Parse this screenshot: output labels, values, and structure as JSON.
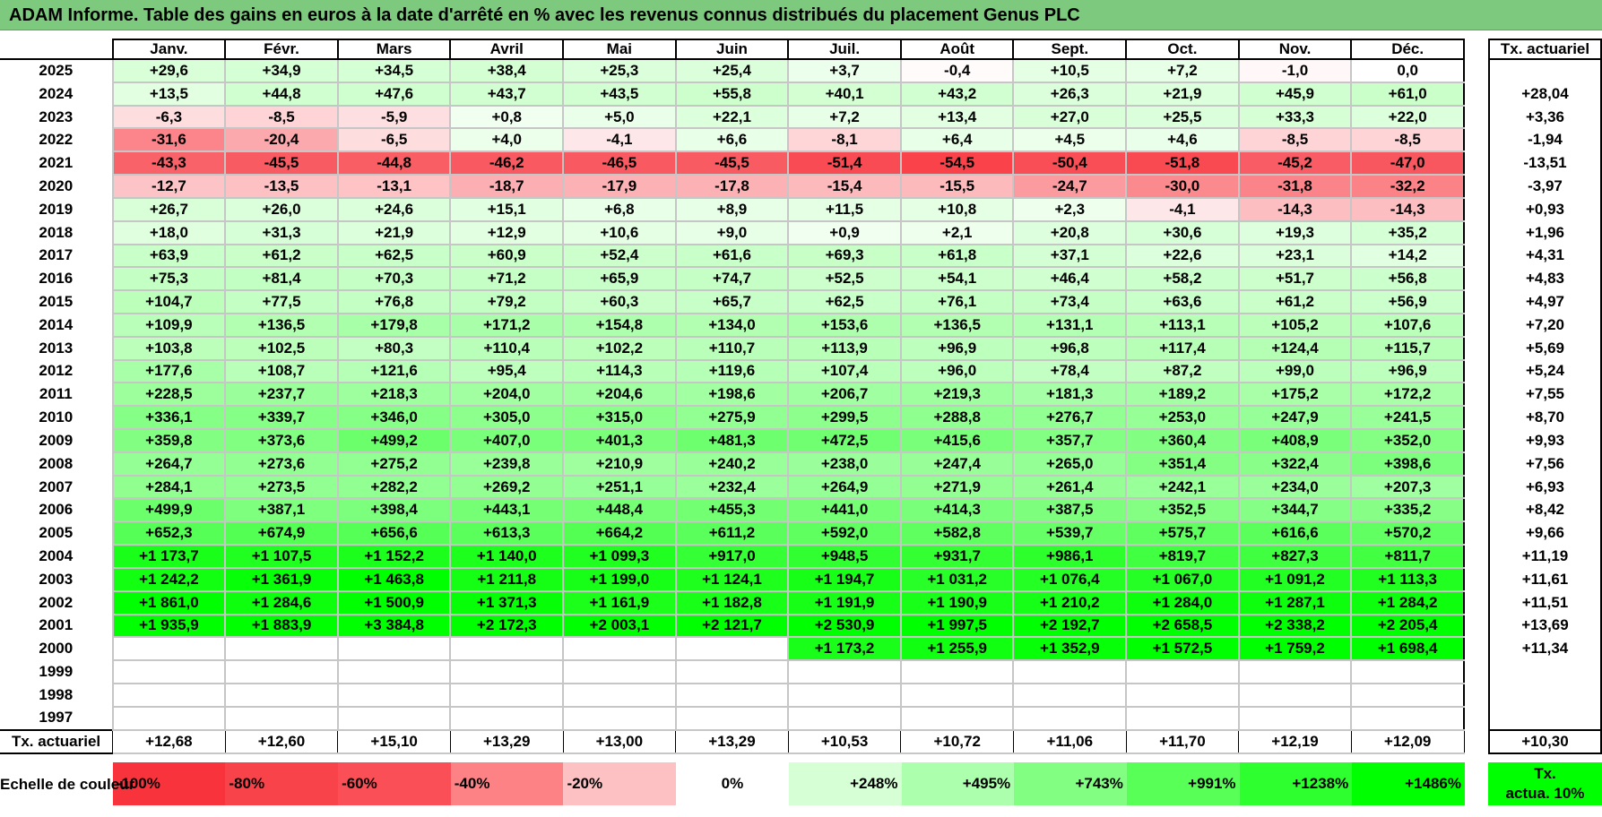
{
  "title": "ADAM Informe. Table des gains en euros à la date d'arrêté en % avec les revenus connus distribués du placement Genus PLC",
  "months": [
    "Janv.",
    "Févr.",
    "Mars",
    "Avril",
    "Mai",
    "Juin",
    "Juil.",
    "Août",
    "Sept.",
    "Oct.",
    "Nov.",
    "Déc."
  ],
  "annual_header": "Tx. actuariel",
  "rows": [
    {
      "year": "2025",
      "values": [
        "+29,6",
        "+34,9",
        "+34,5",
        "+38,4",
        "+25,3",
        "+25,4",
        "+3,7",
        "-0,4",
        "+10,5",
        "+7,2",
        "-1,0",
        "0,0"
      ],
      "annual": ""
    },
    {
      "year": "2024",
      "values": [
        "+13,5",
        "+44,8",
        "+47,6",
        "+43,7",
        "+43,5",
        "+55,8",
        "+40,1",
        "+43,2",
        "+26,3",
        "+21,9",
        "+45,9",
        "+61,0"
      ],
      "annual": "+28,04"
    },
    {
      "year": "2023",
      "values": [
        "-6,3",
        "-8,5",
        "-5,9",
        "+0,8",
        "+5,0",
        "+22,1",
        "+7,2",
        "+13,4",
        "+27,0",
        "+25,5",
        "+33,3",
        "+22,0"
      ],
      "annual": "+3,36"
    },
    {
      "year": "2022",
      "values": [
        "-31,6",
        "-20,4",
        "-6,5",
        "+4,0",
        "-4,1",
        "+6,6",
        "-8,1",
        "+6,4",
        "+4,5",
        "+4,6",
        "-8,5",
        "-8,5"
      ],
      "annual": "-1,94"
    },
    {
      "year": "2021",
      "values": [
        "-43,3",
        "-45,5",
        "-44,8",
        "-46,2",
        "-46,5",
        "-45,5",
        "-51,4",
        "-54,5",
        "-50,4",
        "-51,8",
        "-45,2",
        "-47,0"
      ],
      "annual": "-13,51"
    },
    {
      "year": "2020",
      "values": [
        "-12,7",
        "-13,5",
        "-13,1",
        "-18,7",
        "-17,9",
        "-17,8",
        "-15,4",
        "-15,5",
        "-24,7",
        "-30,0",
        "-31,8",
        "-32,2"
      ],
      "annual": "-3,97"
    },
    {
      "year": "2019",
      "values": [
        "+26,7",
        "+26,0",
        "+24,6",
        "+15,1",
        "+6,8",
        "+8,9",
        "+11,5",
        "+10,8",
        "+2,3",
        "-4,1",
        "-14,3",
        "-14,3"
      ],
      "annual": "+0,93"
    },
    {
      "year": "2018",
      "values": [
        "+18,0",
        "+31,3",
        "+21,9",
        "+12,9",
        "+10,6",
        "+9,0",
        "+0,9",
        "+2,1",
        "+20,8",
        "+30,6",
        "+19,3",
        "+35,2"
      ],
      "annual": "+1,96"
    },
    {
      "year": "2017",
      "values": [
        "+63,9",
        "+61,2",
        "+62,5",
        "+60,9",
        "+52,4",
        "+61,6",
        "+69,3",
        "+61,8",
        "+37,1",
        "+22,6",
        "+23,1",
        "+14,2"
      ],
      "annual": "+4,31"
    },
    {
      "year": "2016",
      "values": [
        "+75,3",
        "+81,4",
        "+70,3",
        "+71,2",
        "+65,9",
        "+74,7",
        "+52,5",
        "+54,1",
        "+46,4",
        "+58,2",
        "+51,7",
        "+56,8"
      ],
      "annual": "+4,83"
    },
    {
      "year": "2015",
      "values": [
        "+104,7",
        "+77,5",
        "+76,8",
        "+79,2",
        "+60,3",
        "+65,7",
        "+62,5",
        "+76,1",
        "+73,4",
        "+63,6",
        "+61,2",
        "+56,9"
      ],
      "annual": "+4,97"
    },
    {
      "year": "2014",
      "values": [
        "+109,9",
        "+136,5",
        "+179,8",
        "+171,2",
        "+154,8",
        "+134,0",
        "+153,6",
        "+136,5",
        "+131,1",
        "+113,1",
        "+105,2",
        "+107,6"
      ],
      "annual": "+7,20"
    },
    {
      "year": "2013",
      "values": [
        "+103,8",
        "+102,5",
        "+80,3",
        "+110,4",
        "+102,2",
        "+110,7",
        "+113,9",
        "+96,9",
        "+96,8",
        "+117,4",
        "+124,4",
        "+115,7"
      ],
      "annual": "+5,69"
    },
    {
      "year": "2012",
      "values": [
        "+177,6",
        "+108,7",
        "+121,6",
        "+95,4",
        "+114,3",
        "+119,6",
        "+107,4",
        "+96,0",
        "+78,4",
        "+87,2",
        "+99,0",
        "+96,9"
      ],
      "annual": "+5,24"
    },
    {
      "year": "2011",
      "values": [
        "+228,5",
        "+237,7",
        "+218,3",
        "+204,0",
        "+204,6",
        "+198,6",
        "+206,7",
        "+219,3",
        "+181,3",
        "+189,2",
        "+175,2",
        "+172,2"
      ],
      "annual": "+7,55"
    },
    {
      "year": "2010",
      "values": [
        "+336,1",
        "+339,7",
        "+346,0",
        "+305,0",
        "+315,0",
        "+275,9",
        "+299,5",
        "+288,8",
        "+276,7",
        "+253,0",
        "+247,9",
        "+241,5"
      ],
      "annual": "+8,70"
    },
    {
      "year": "2009",
      "values": [
        "+359,8",
        "+373,6",
        "+499,2",
        "+407,0",
        "+401,3",
        "+481,3",
        "+472,5",
        "+415,6",
        "+357,7",
        "+360,4",
        "+408,9",
        "+352,0"
      ],
      "annual": "+9,93"
    },
    {
      "year": "2008",
      "values": [
        "+264,7",
        "+273,6",
        "+275,2",
        "+239,8",
        "+210,9",
        "+240,2",
        "+238,0",
        "+247,4",
        "+265,0",
        "+351,4",
        "+322,4",
        "+398,6"
      ],
      "annual": "+7,56"
    },
    {
      "year": "2007",
      "values": [
        "+284,1",
        "+273,5",
        "+282,2",
        "+269,2",
        "+251,1",
        "+232,4",
        "+264,9",
        "+271,9",
        "+261,4",
        "+242,1",
        "+234,0",
        "+207,3"
      ],
      "annual": "+6,93"
    },
    {
      "year": "2006",
      "values": [
        "+499,9",
        "+387,1",
        "+398,4",
        "+443,1",
        "+448,4",
        "+455,3",
        "+441,0",
        "+414,3",
        "+387,5",
        "+352,5",
        "+344,7",
        "+335,2"
      ],
      "annual": "+8,42"
    },
    {
      "year": "2005",
      "values": [
        "+652,3",
        "+674,9",
        "+656,6",
        "+613,3",
        "+664,2",
        "+611,2",
        "+592,0",
        "+582,8",
        "+539,7",
        "+575,7",
        "+616,6",
        "+570,2"
      ],
      "annual": "+9,66"
    },
    {
      "year": "2004",
      "values": [
        "+1 173,7",
        "+1 107,5",
        "+1 152,2",
        "+1 140,0",
        "+1 099,3",
        "+917,0",
        "+948,5",
        "+931,7",
        "+986,1",
        "+819,7",
        "+827,3",
        "+811,7"
      ],
      "annual": "+11,19"
    },
    {
      "year": "2003",
      "values": [
        "+1 242,2",
        "+1 361,9",
        "+1 463,8",
        "+1 211,8",
        "+1 199,0",
        "+1 124,1",
        "+1 194,7",
        "+1 031,2",
        "+1 076,4",
        "+1 067,0",
        "+1 091,2",
        "+1 113,3"
      ],
      "annual": "+11,61"
    },
    {
      "year": "2002",
      "values": [
        "+1 861,0",
        "+1 284,6",
        "+1 500,9",
        "+1 371,3",
        "+1 161,9",
        "+1 182,8",
        "+1 191,9",
        "+1 190,9",
        "+1 210,2",
        "+1 284,0",
        "+1 287,1",
        "+1 284,2"
      ],
      "annual": "+11,51"
    },
    {
      "year": "2001",
      "values": [
        "+1 935,9",
        "+1 883,9",
        "+3 384,8",
        "+2 172,3",
        "+2 003,1",
        "+2 121,7",
        "+2 530,9",
        "+1 997,5",
        "+2 192,7",
        "+2 658,5",
        "+2 338,2",
        "+2 205,4"
      ],
      "annual": "+13,69"
    },
    {
      "year": "2000",
      "values": [
        "",
        "",
        "",
        "",
        "",
        "",
        "+1 173,2",
        "+1 255,9",
        "+1 352,9",
        "+1 572,5",
        "+1 759,2",
        "+1 698,4"
      ],
      "annual": "+11,34"
    },
    {
      "year": "1999",
      "values": [
        "",
        "",
        "",
        "",
        "",
        "",
        "",
        "",
        "",
        "",
        "",
        ""
      ],
      "annual": ""
    },
    {
      "year": "1998",
      "values": [
        "",
        "",
        "",
        "",
        "",
        "",
        "",
        "",
        "",
        "",
        "",
        ""
      ],
      "annual": ""
    },
    {
      "year": "1997",
      "values": [
        "",
        "",
        "",
        "",
        "",
        "",
        "",
        "",
        "",
        "",
        "",
        ""
      ],
      "annual": ""
    }
  ],
  "footer": {
    "label": "Tx. actuariel",
    "values": [
      "+12,68",
      "+12,60",
      "+15,10",
      "+13,29",
      "+13,00",
      "+13,29",
      "+10,53",
      "+10,72",
      "+11,06",
      "+11,70",
      "+12,19",
      "+12,09"
    ],
    "annual": "+10,30"
  },
  "scale": {
    "label": "Echelle de couleur",
    "stops": [
      {
        "label": "-100%",
        "color": "#f8333c",
        "kind": "neg"
      },
      {
        "label": "-80%",
        "color": "#f9434b",
        "kind": "neg"
      },
      {
        "label": "-60%",
        "color": "#fa4f56",
        "kind": "neg"
      },
      {
        "label": "-40%",
        "color": "#fc8286",
        "kind": "neg"
      },
      {
        "label": "-20%",
        "color": "#fdc1c3",
        "kind": "neg"
      },
      {
        "label": "0%",
        "color": "#ffffff",
        "kind": "zero"
      },
      {
        "label": "+248%",
        "color": "#d6ffd6",
        "kind": "pos"
      },
      {
        "label": "+495%",
        "color": "#acffac",
        "kind": "pos"
      },
      {
        "label": "+743%",
        "color": "#82ff82",
        "kind": "pos"
      },
      {
        "label": "+991%",
        "color": "#57ff57",
        "kind": "pos"
      },
      {
        "label": "+1238%",
        "color": "#2eff2e",
        "kind": "pos"
      },
      {
        "label": "+1486%",
        "color": "#00ff00",
        "kind": "pos"
      }
    ],
    "rate_label_line1": "Tx.",
    "rate_label_line2": "actua. 10%",
    "rate_color": "#00ff00"
  }
}
